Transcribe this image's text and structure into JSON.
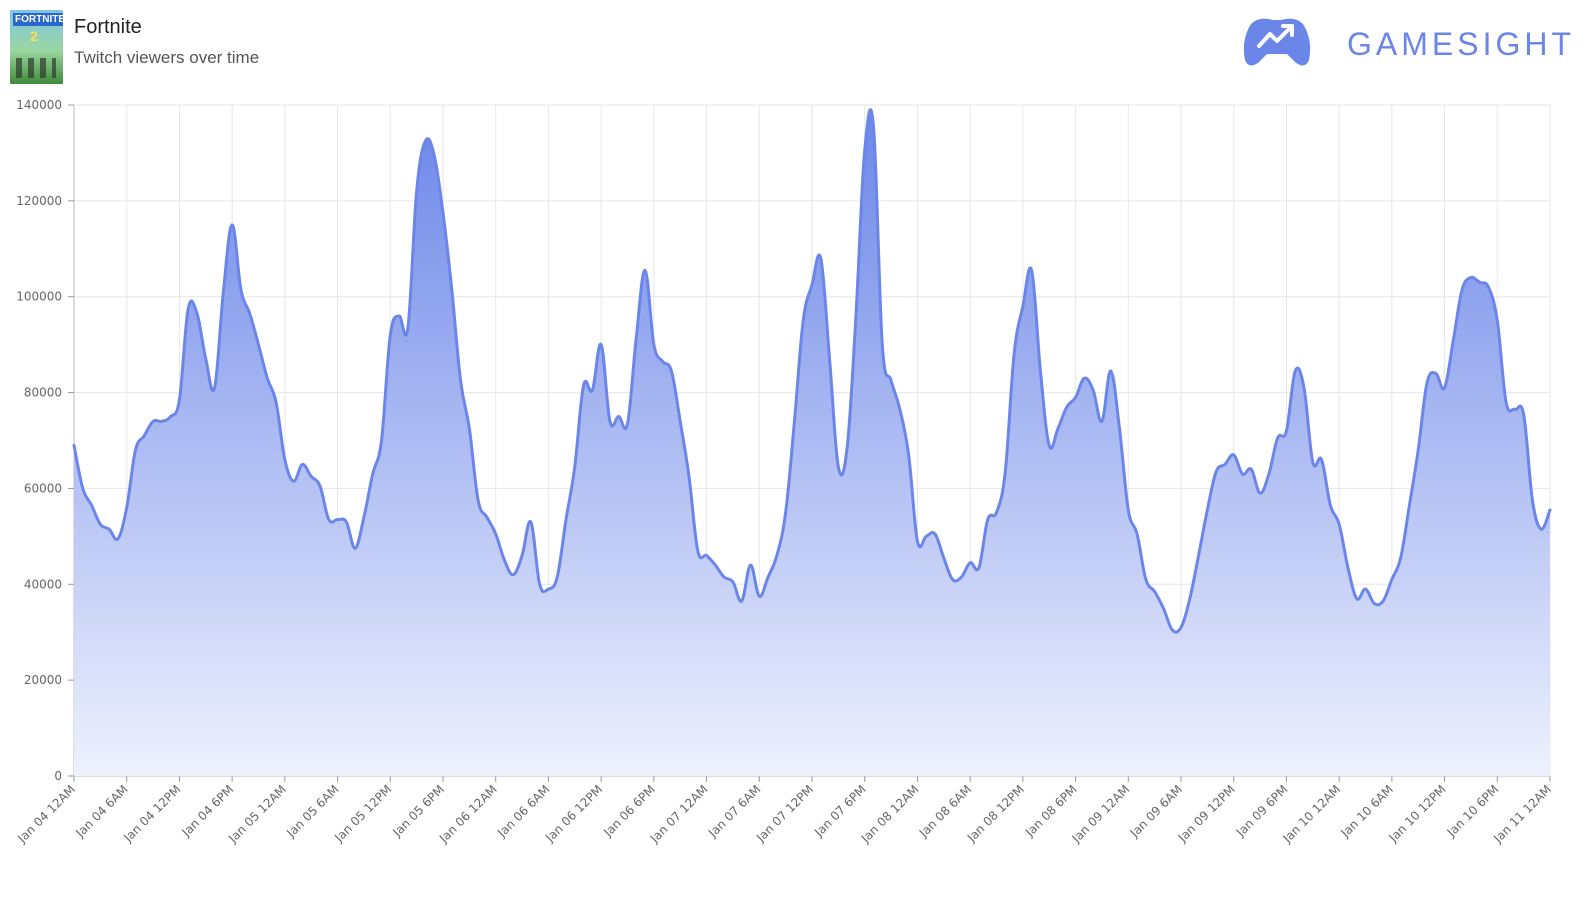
{
  "header": {
    "title": "Fortnite",
    "subtitle": "Twitch viewers over time",
    "thumb_logo_text": "FORTNITE",
    "thumb_number": "2"
  },
  "brand": {
    "name": "GAMESIGHT",
    "color": "#6b86e8"
  },
  "colors": {
    "line": "#6b86e8",
    "fill_top": "#6b86e8",
    "fill_bottom": "#eef1fd",
    "grid": "#e6e6e6"
  },
  "chart_data": {
    "type": "area",
    "title": "",
    "xlabel": "",
    "ylabel": "",
    "ylim": [
      0,
      140000
    ],
    "yticks": [
      "0",
      "20000",
      "40000",
      "60000",
      "80000",
      "100000",
      "120000",
      "140000"
    ],
    "x_tick_labels": [
      "Jan 04 12AM",
      "Jan 04 6AM",
      "Jan 04 12PM",
      "Jan 04 6PM",
      "Jan 05 12AM",
      "Jan 05 6AM",
      "Jan 05 12PM",
      "Jan 05 6PM",
      "Jan 06 12AM",
      "Jan 06 6AM",
      "Jan 06 12PM",
      "Jan 06 6PM",
      "Jan 07 12AM",
      "Jan 07 6AM",
      "Jan 07 12PM",
      "Jan 07 6PM",
      "Jan 08 12AM",
      "Jan 08 6AM",
      "Jan 08 12PM",
      "Jan 08 6PM",
      "Jan 09 12AM",
      "Jan 09 6AM",
      "Jan 09 12PM",
      "Jan 09 6PM",
      "Jan 10 12AM",
      "Jan 10 6AM",
      "Jan 10 12PM",
      "Jan 10 6PM",
      "Jan 11 12AM"
    ],
    "grid": true,
    "legend": "none",
    "series": [
      {
        "values": [
          69000,
          60000,
          56500,
          52500,
          51500,
          49500,
          56000,
          68000,
          71000,
          74000,
          74000,
          75000,
          78500,
          97500,
          96500,
          87000,
          81000,
          101000,
          115000,
          101500,
          96500,
          90000,
          83000,
          78000,
          66000,
          61500,
          65000,
          62500,
          60500,
          53500,
          53500,
          53000,
          47500,
          54000,
          63000,
          70000,
          92000,
          96000,
          93500,
          122000,
          132500,
          129500,
          117500,
          101500,
          82500,
          72500,
          57500,
          54000,
          50500,
          45000,
          42000,
          46000,
          53000,
          40000,
          39000,
          41500,
          53500,
          64500,
          81500,
          80500,
          90000,
          74000,
          75000,
          73500,
          91500,
          105500,
          90000,
          86500,
          84500,
          74000,
          62500,
          47000,
          46000,
          44000,
          41500,
          40500,
          36500,
          44000,
          37500,
          41500,
          46000,
          55000,
          74000,
          95000,
          102500,
          108000,
          87000,
          64500,
          68500,
          96000,
          130500,
          135500,
          90000,
          82500,
          76500,
          67000,
          49000,
          50000,
          50500,
          45500,
          41000,
          41500,
          44500,
          43500,
          53500,
          55000,
          63500,
          88000,
          98000,
          105500,
          84500,
          69000,
          72500,
          77000,
          79000,
          83000,
          80500,
          74000,
          84500,
          72500,
          55500,
          50500,
          41000,
          38500,
          35000,
          30500,
          31000,
          37000,
          46000,
          55500,
          63500,
          65000,
          67000,
          63000,
          64000,
          59000,
          63000,
          70500,
          72000,
          84500,
          81000,
          65500,
          66000,
          56500,
          52500,
          43500,
          37000,
          39000,
          36000,
          36500,
          41000,
          45500,
          56500,
          68000,
          82000,
          84000,
          81000,
          91000,
          101500,
          104000,
          103000,
          102000,
          95000,
          78000,
          76500,
          75500,
          57500,
          51500,
          55500
        ]
      }
    ]
  }
}
